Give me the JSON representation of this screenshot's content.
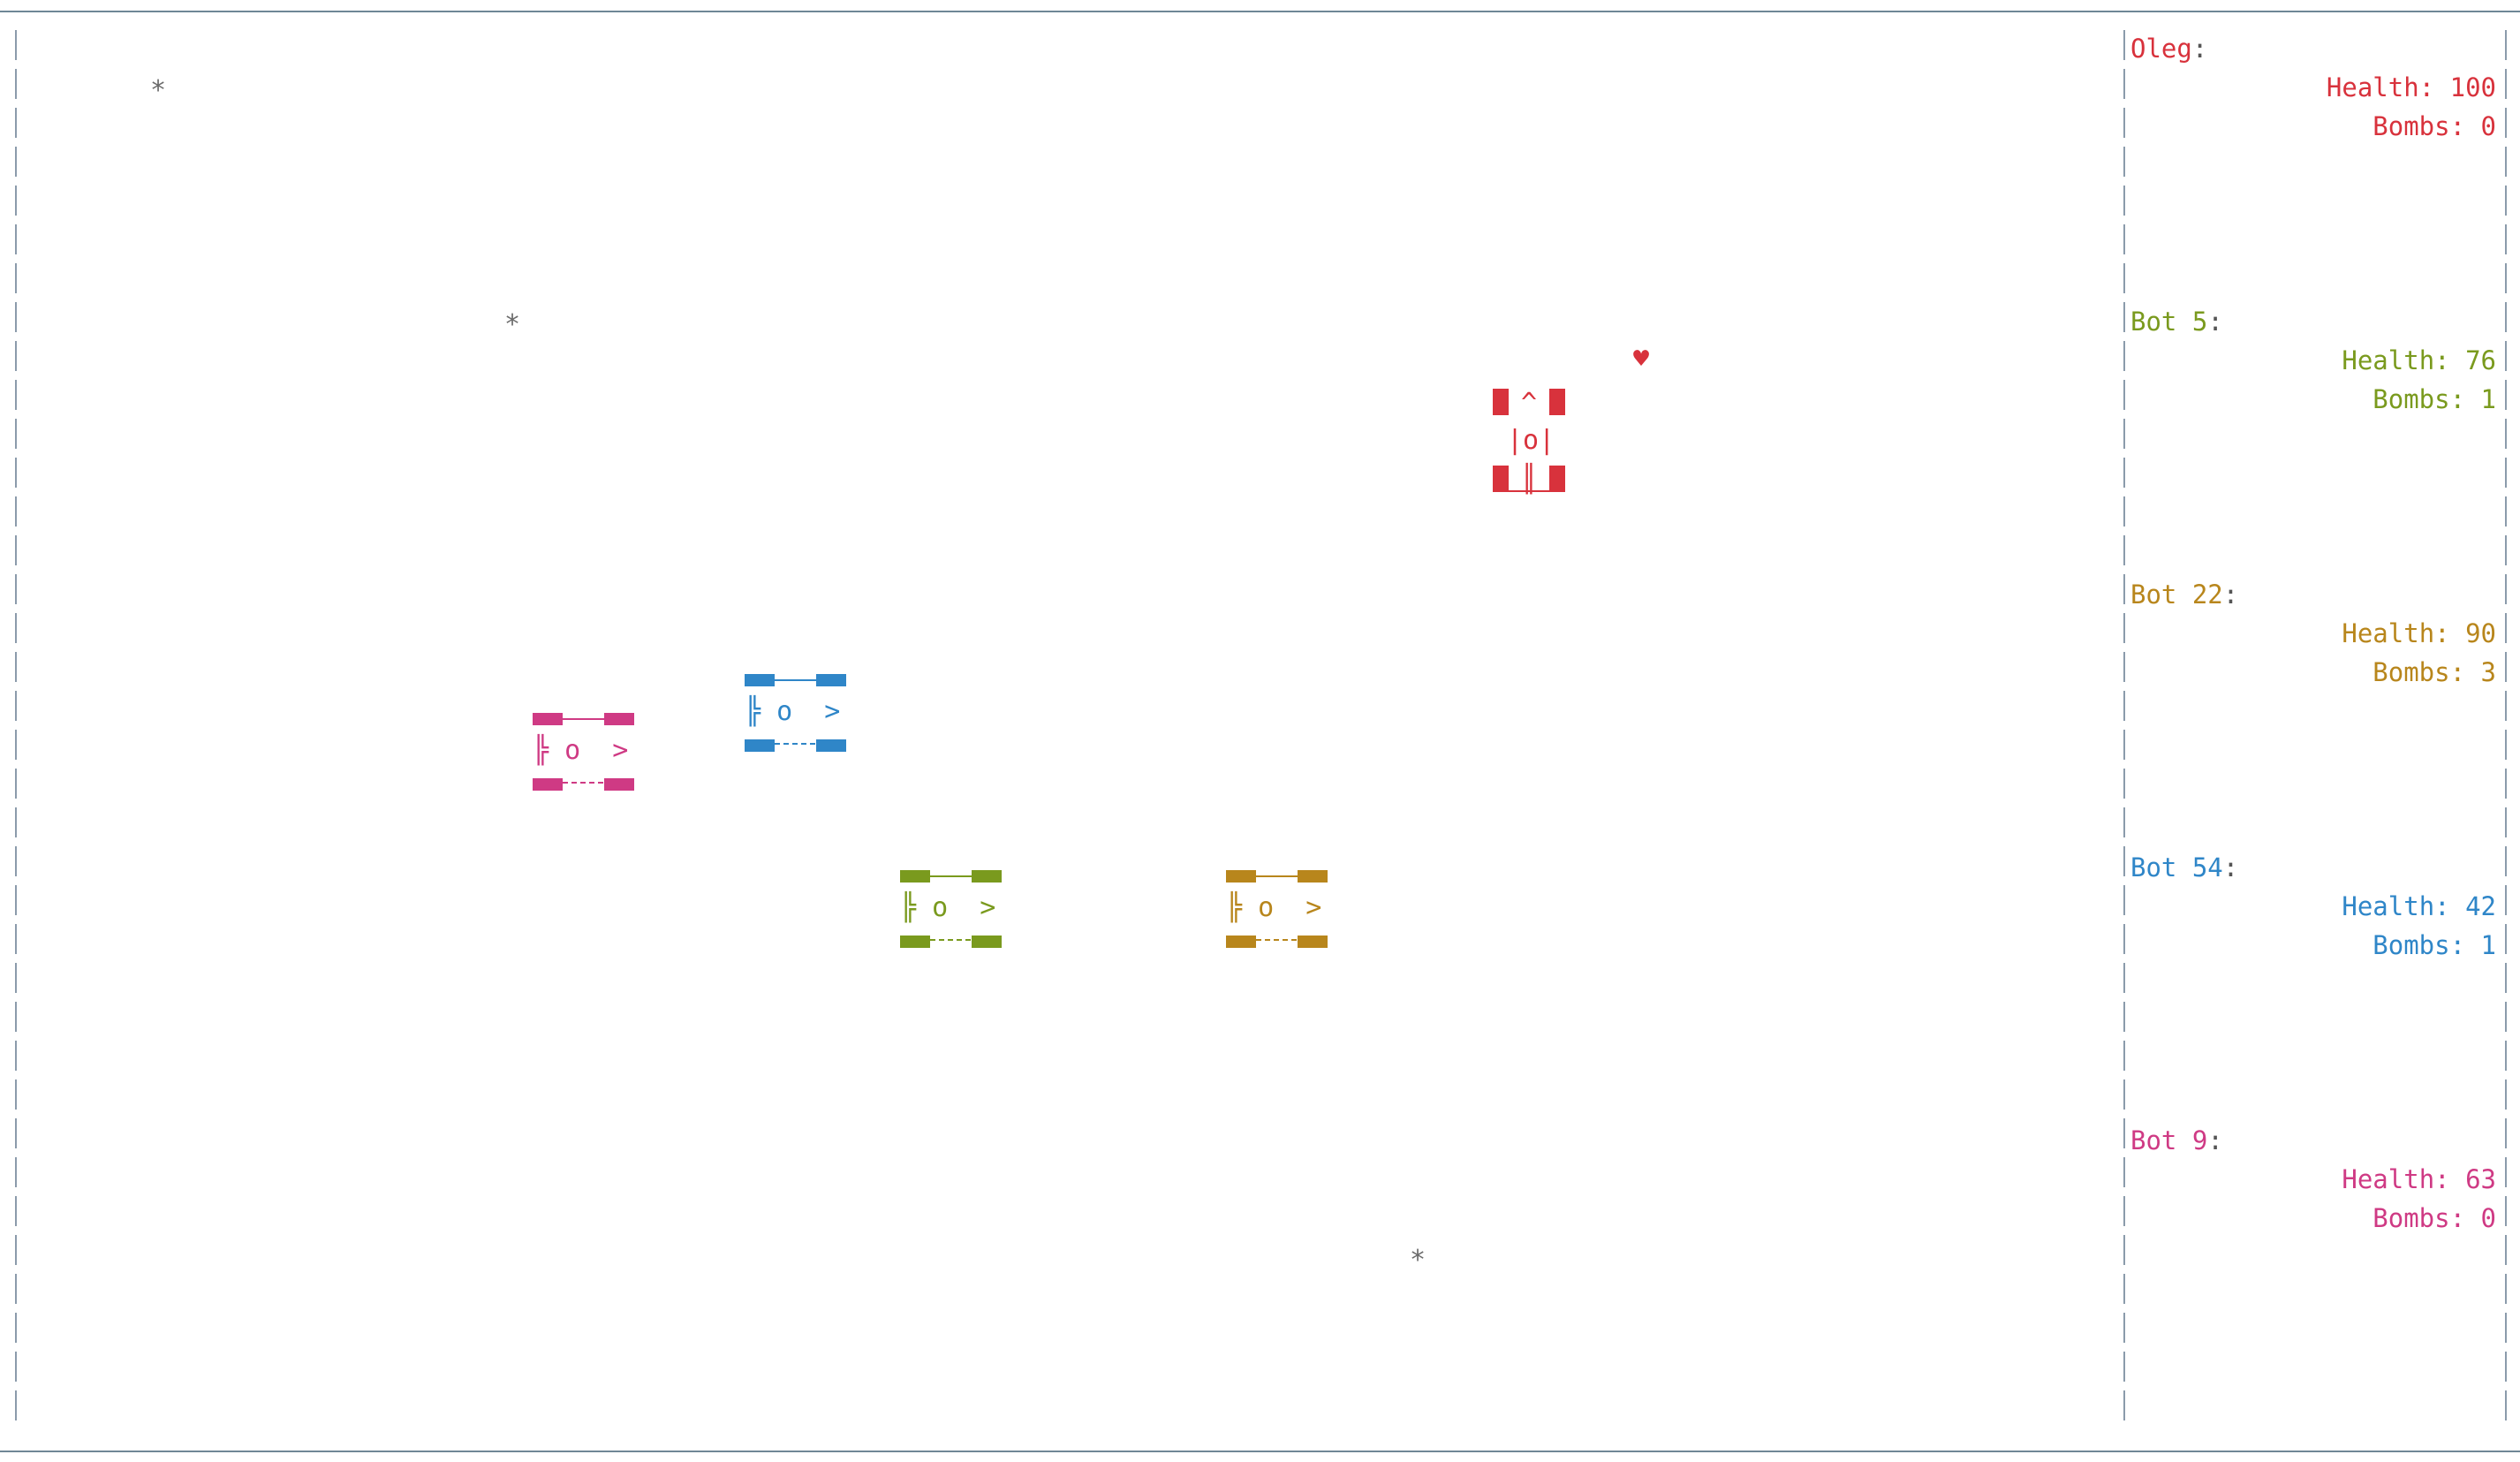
{
  "colors": {
    "player": "#d8323c",
    "bot5": "#7a9a1e",
    "bot22": "#b8861c",
    "bot54": "#2f86c8",
    "bot9": "#cf3a84",
    "frame": "#6f8796",
    "debris": "#6b6b6b"
  },
  "players": [
    {
      "name": "Oleg",
      "colon": ":",
      "health_label": "Health:",
      "health": "100",
      "bombs_label": "Bombs:",
      "bombs": "0"
    },
    {
      "name": "Bot 5",
      "colon": ":",
      "health_label": "Health:",
      "health": "76",
      "bombs_label": "Bombs:",
      "bombs": "1"
    },
    {
      "name": "Bot 22",
      "colon": ":",
      "health_label": "Health:",
      "health": "90",
      "bombs_label": "Bombs:",
      "bombs": "3"
    },
    {
      "name": "Bot 54",
      "colon": ":",
      "health_label": "Health:",
      "health": "42",
      "bombs_label": "Bombs:",
      "bombs": "1"
    },
    {
      "name": "Bot 9",
      "colon": ":",
      "health_label": "Health:",
      "health": "63",
      "bombs_label": "Bombs:",
      "bombs": "0"
    }
  ],
  "field": {
    "debris_glyph": "*",
    "heart_glyph": "♥",
    "tank_right_text": "╠ o  >",
    "tank_up_top": "^",
    "tank_up_mid": "|o|",
    "tank_up_bottom": "║"
  }
}
